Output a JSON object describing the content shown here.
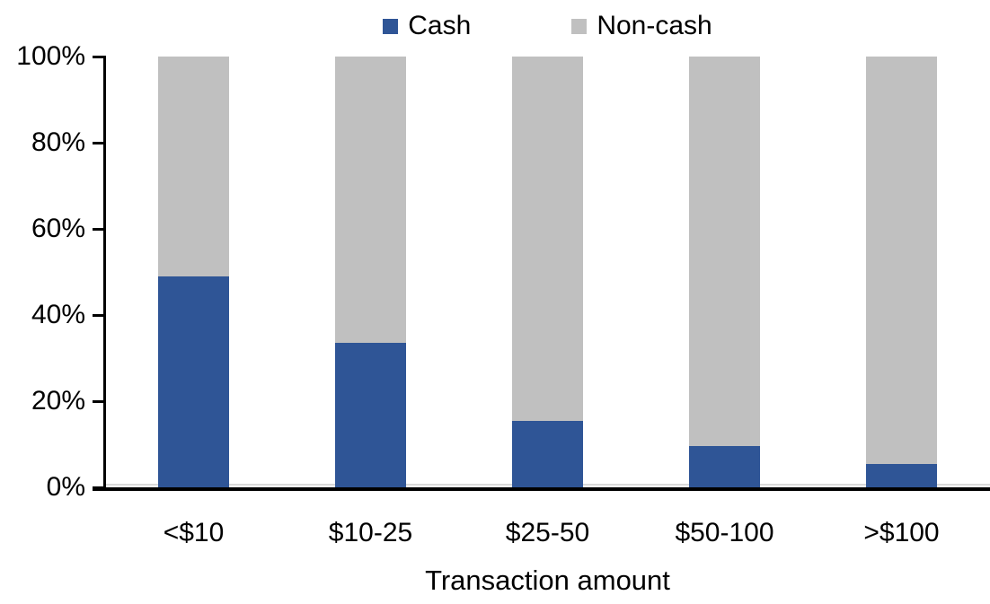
{
  "chart_data": {
    "type": "bar",
    "stacked": true,
    "stack_total": 100,
    "title": "",
    "xlabel": "Transaction amount",
    "ylabel": "",
    "categories": [
      "<$10",
      "$10-25",
      "$25-50",
      "$50-100",
      ">$100"
    ],
    "series": [
      {
        "name": "Cash",
        "color": "#2F5596",
        "values": [
          49,
          33.5,
          15.5,
          9.5,
          5.5
        ]
      },
      {
        "name": "Non-cash",
        "color": "#C0C0C0",
        "values": [
          51,
          66.5,
          84.5,
          90.5,
          94.5
        ]
      }
    ],
    "ylim": [
      0,
      100
    ],
    "yticks": [
      "0%",
      "20%",
      "40%",
      "60%",
      "80%",
      "100%"
    ],
    "legend_position": "top",
    "grid": false,
    "axis_color": "#000000",
    "baseline_light_color": "#D9D9D9",
    "background_color": "#FFFFFF"
  }
}
